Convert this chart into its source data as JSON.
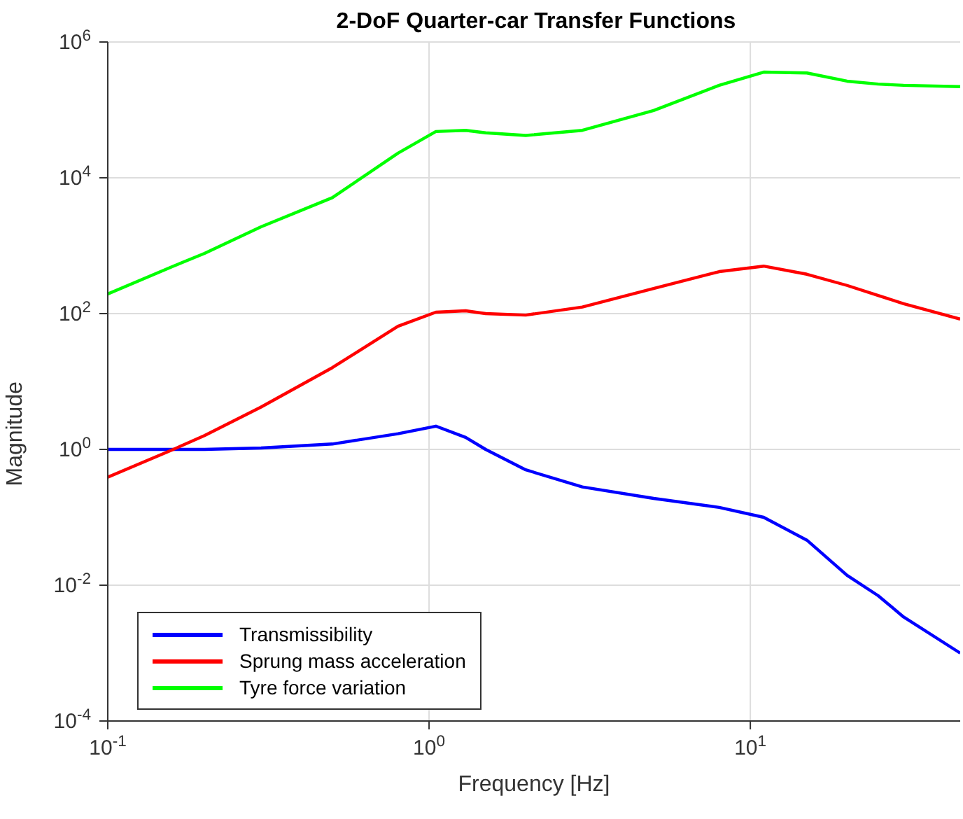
{
  "chart_data": {
    "type": "line",
    "title": "2-DoF Quarter-car Transfer Functions",
    "xlabel": "Frequency [Hz]",
    "ylabel": "Magnitude",
    "x": [
      0.1,
      0.16,
      0.2,
      0.3,
      0.5,
      0.8,
      1.05,
      1.3,
      1.5,
      2,
      3,
      5,
      8,
      11,
      15,
      20,
      25,
      30,
      45
    ],
    "series": [
      {
        "name": "Transmissibility",
        "color": "#0000ff",
        "values": [
          1.0,
          1.0,
          1.0,
          1.05,
          1.2,
          1.7,
          2.2,
          1.5,
          1.0,
          0.5,
          0.28,
          0.19,
          0.14,
          0.1,
          0.046,
          0.014,
          0.007,
          0.0034,
          0.001
        ]
      },
      {
        "name": "Sprung mass acceleration",
        "color": "#ff0000",
        "values": [
          0.39,
          1.0,
          1.6,
          4.2,
          16,
          65,
          105,
          110,
          100,
          95,
          125,
          235,
          415,
          500,
          380,
          260,
          185,
          140,
          83
        ]
      },
      {
        "name": "Tyre force variation",
        "color": "#00ff00",
        "values": [
          195,
          500,
          770,
          1900,
          5100,
          23000,
          48000,
          50000,
          46000,
          42000,
          50000,
          98000,
          230000,
          360000,
          350000,
          265000,
          240000,
          230000,
          220000
        ]
      }
    ],
    "log": "xy",
    "xlim": [
      0.1,
      45
    ],
    "ylim": [
      0.0001,
      1000000
    ],
    "xticks": [
      {
        "value": 0.1,
        "label": "10$^{-1}$"
      },
      {
        "value": 1,
        "label": "10$^{0}$"
      },
      {
        "value": 10,
        "label": "10$^{1}$"
      }
    ],
    "yticks": [
      {
        "value": 0.0001,
        "label": "10$^{-4}$"
      },
      {
        "value": 0.01,
        "label": "10$^{-2}$"
      },
      {
        "value": 1,
        "label": "10$^{0}$"
      },
      {
        "value": 100,
        "label": "10$^{2}$"
      },
      {
        "value": 10000,
        "label": "10$^{4}$"
      },
      {
        "value": 1000000,
        "label": "10$^{6}$"
      }
    ],
    "grid": true,
    "legend": "bottom left",
    "line_style": "solid",
    "marker": "none"
  }
}
